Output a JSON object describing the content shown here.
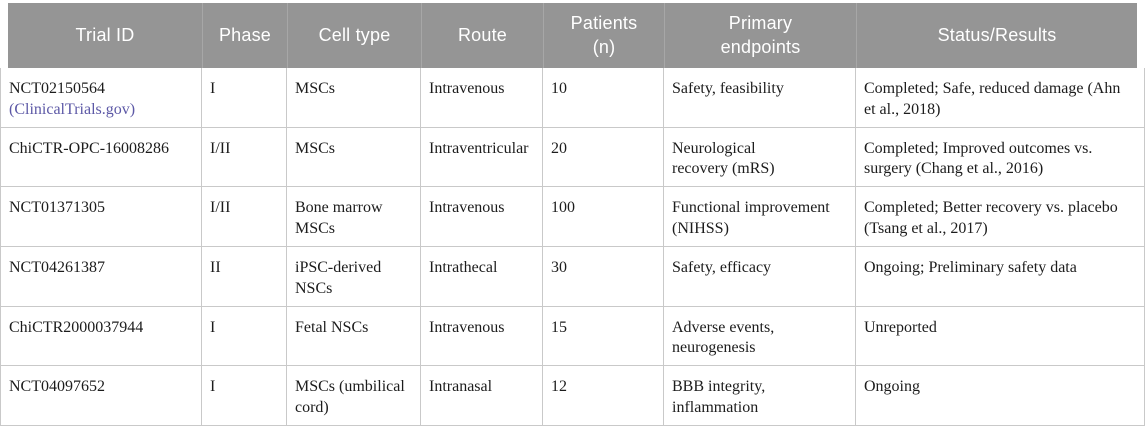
{
  "colors": {
    "header_bg": "#959595",
    "header_sep": "#a7a7a7",
    "header_text": "#ffffff",
    "body_border": "#c9c9c9",
    "text": "#1c1c1c",
    "link": "#5c58a6"
  },
  "table": {
    "columns": [
      {
        "label": "Trial ID"
      },
      {
        "label": "Phase"
      },
      {
        "label": "Cell type"
      },
      {
        "label": "Route"
      },
      {
        "label": "Patients\n(n)"
      },
      {
        "label": "Primary\nendpoints"
      },
      {
        "label": "Status/Results"
      }
    ],
    "rows": [
      {
        "trial_id": "NCT02150564",
        "trial_link": "ClinicalTrials.gov",
        "phase": "I",
        "cell_type": "MSCs",
        "route": "Intravenous",
        "patients": "10",
        "endpoints": "Safety, feasibility",
        "status": "Completed; Safe, reduced damage (Ahn\net al., 2018)"
      },
      {
        "trial_id": "ChiCTR-OPC-16008286",
        "phase": "I/II",
        "cell_type": "MSCs",
        "route": "Intraventricular",
        "patients": "20",
        "endpoints": "Neurological\nrecovery (mRS)",
        "status": "Completed; Improved outcomes vs.\nsurgery (Chang et al., 2016)"
      },
      {
        "trial_id": "NCT01371305",
        "phase": "I/II",
        "cell_type": "Bone marrow\nMSCs",
        "route": "Intravenous",
        "patients": "100",
        "endpoints": "Functional improvement\n(NIHSS)",
        "status": "Completed; Better recovery vs. placebo\n(Tsang et al., 2017)"
      },
      {
        "trial_id": "NCT04261387",
        "phase": "II",
        "cell_type": "iPSC-derived\nNSCs",
        "route": "Intrathecal",
        "patients": "30",
        "endpoints": "Safety, efficacy",
        "status": "Ongoing; Preliminary safety data"
      },
      {
        "trial_id": "ChiCTR2000037944",
        "phase": "I",
        "cell_type": "Fetal NSCs",
        "route": "Intravenous",
        "patients": "15",
        "endpoints": "Adverse events,\nneurogenesis",
        "status": "Unreported"
      },
      {
        "trial_id": "NCT04097652",
        "phase": "I",
        "cell_type": "MSCs (umbilical\ncord)",
        "route": "Intranasal",
        "patients": "12",
        "endpoints": "BBB integrity,\ninflammation",
        "status": "Ongoing"
      }
    ]
  }
}
